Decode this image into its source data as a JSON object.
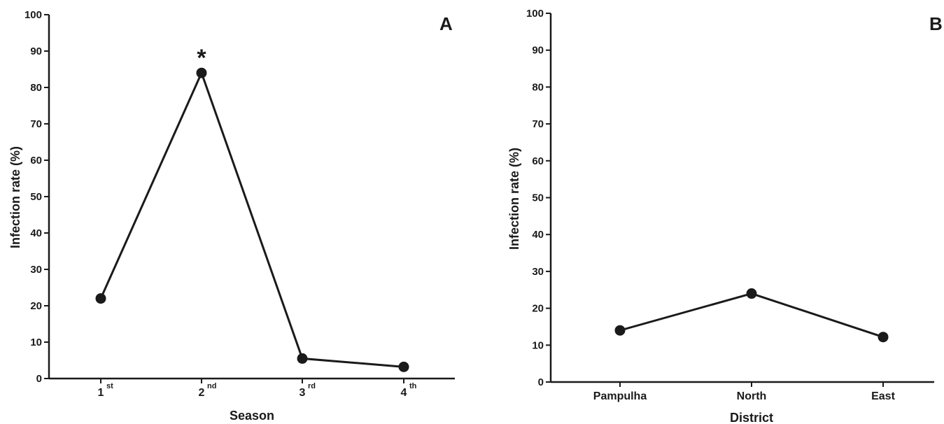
{
  "chart_data": [
    {
      "type": "line",
      "panel_label": "A",
      "ylabel": "Infection rate (%)",
      "xlabel": "Season",
      "ylim": [
        0,
        100
      ],
      "yticks": [
        0,
        10,
        20,
        30,
        40,
        50,
        60,
        70,
        80,
        90,
        100
      ],
      "categories": [
        {
          "base": "1",
          "sup": "st"
        },
        {
          "base": "2",
          "sup": "nd"
        },
        {
          "base": "3",
          "sup": "rd"
        },
        {
          "base": "4",
          "sup": "th"
        }
      ],
      "values": [
        22,
        84,
        5.5,
        3.2
      ],
      "annotations": [
        {
          "category_index": 1,
          "text": "*"
        }
      ],
      "grid": false,
      "color": "#1a1a1a"
    },
    {
      "type": "line",
      "panel_label": "B",
      "ylabel": "Infection rate (%)",
      "xlabel": "District",
      "ylim": [
        0,
        100
      ],
      "yticks": [
        0,
        10,
        20,
        30,
        40,
        50,
        60,
        70,
        80,
        90,
        100
      ],
      "categories": [
        {
          "base": "Pampulha",
          "sup": ""
        },
        {
          "base": "North",
          "sup": ""
        },
        {
          "base": "East",
          "sup": ""
        }
      ],
      "values": [
        14,
        24,
        12.2
      ],
      "annotations": [],
      "grid": false,
      "color": "#1a1a1a"
    }
  ]
}
